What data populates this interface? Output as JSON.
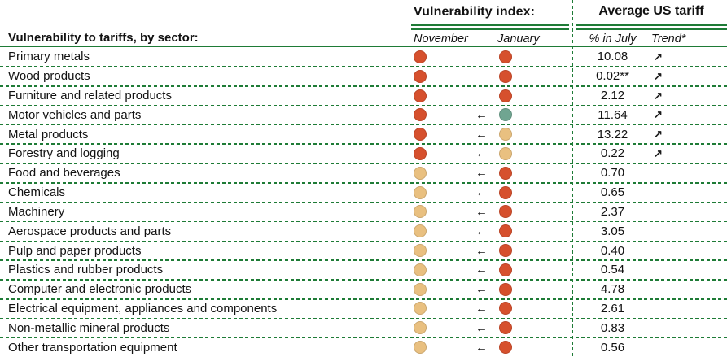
{
  "header": {
    "vulnerability_index_label": "Vulnerability index:",
    "average_us_tariff_label": "Average US tariff",
    "sector_column_label": "Vulnerability to tariffs, by sector:",
    "november_label": "November",
    "january_label": "January",
    "july_label": "% in July",
    "trend_label": "Trend*"
  },
  "icons": {
    "left_arrow": "←",
    "trend_up": "↗"
  },
  "colors": {
    "red": "#d6502d",
    "tan": "#e9c080",
    "green": "#70a591",
    "line_green": "#1e7b36",
    "text": "#121212"
  },
  "chart_data": {
    "type": "table",
    "columns": [
      "Sector",
      "Vulnerability index November",
      "Vulnerability index January",
      "Average US tariff % in July",
      "Trend"
    ],
    "rows": [
      {
        "sector": "Primary metals",
        "november": "red",
        "january": "red",
        "shift_arrow": false,
        "tariff_pct_july": "10.08",
        "trend_up": true
      },
      {
        "sector": "Wood products",
        "november": "red",
        "january": "red",
        "shift_arrow": false,
        "tariff_pct_july": "0.02**",
        "trend_up": true
      },
      {
        "sector": "Furniture and related products",
        "november": "red",
        "january": "red",
        "shift_arrow": false,
        "tariff_pct_july": "2.12",
        "trend_up": true
      },
      {
        "sector": "Motor vehicles and parts",
        "november": "red",
        "january": "green",
        "shift_arrow": true,
        "tariff_pct_july": "11.64",
        "trend_up": true
      },
      {
        "sector": "Metal products",
        "november": "red",
        "january": "tan",
        "shift_arrow": true,
        "tariff_pct_july": "13.22",
        "trend_up": true
      },
      {
        "sector": "Forestry and logging",
        "november": "red",
        "january": "tan",
        "shift_arrow": true,
        "tariff_pct_july": "0.22",
        "trend_up": true
      },
      {
        "sector": "Food and beverages",
        "november": "tan",
        "january": "red",
        "shift_arrow": true,
        "tariff_pct_july": "0.70",
        "trend_up": false
      },
      {
        "sector": "Chemicals",
        "november": "tan",
        "january": "red",
        "shift_arrow": true,
        "tariff_pct_july": "0.65",
        "trend_up": false
      },
      {
        "sector": "Machinery",
        "november": "tan",
        "january": "red",
        "shift_arrow": true,
        "tariff_pct_july": "2.37",
        "trend_up": false
      },
      {
        "sector": "Aerospace products and parts",
        "november": "tan",
        "january": "red",
        "shift_arrow": true,
        "tariff_pct_july": "3.05",
        "trend_up": false
      },
      {
        "sector": "Pulp and paper products",
        "november": "tan",
        "january": "red",
        "shift_arrow": true,
        "tariff_pct_july": "0.40",
        "trend_up": false
      },
      {
        "sector": "Plastics and rubber products",
        "november": "tan",
        "january": "red",
        "shift_arrow": true,
        "tariff_pct_july": "0.54",
        "trend_up": false
      },
      {
        "sector": "Computer and electronic products",
        "november": "tan",
        "january": "red",
        "shift_arrow": true,
        "tariff_pct_july": "4.78",
        "trend_up": false
      },
      {
        "sector": "Electrical equipment, appliances and components",
        "november": "tan",
        "january": "red",
        "shift_arrow": true,
        "tariff_pct_july": "2.61",
        "trend_up": false
      },
      {
        "sector": "Non-metallic mineral products",
        "november": "tan",
        "january": "red",
        "shift_arrow": true,
        "tariff_pct_july": "0.83",
        "trend_up": false
      },
      {
        "sector": "Other transportation equipment",
        "november": "tan",
        "january": "red",
        "shift_arrow": true,
        "tariff_pct_july": "0.56",
        "trend_up": false
      }
    ]
  }
}
